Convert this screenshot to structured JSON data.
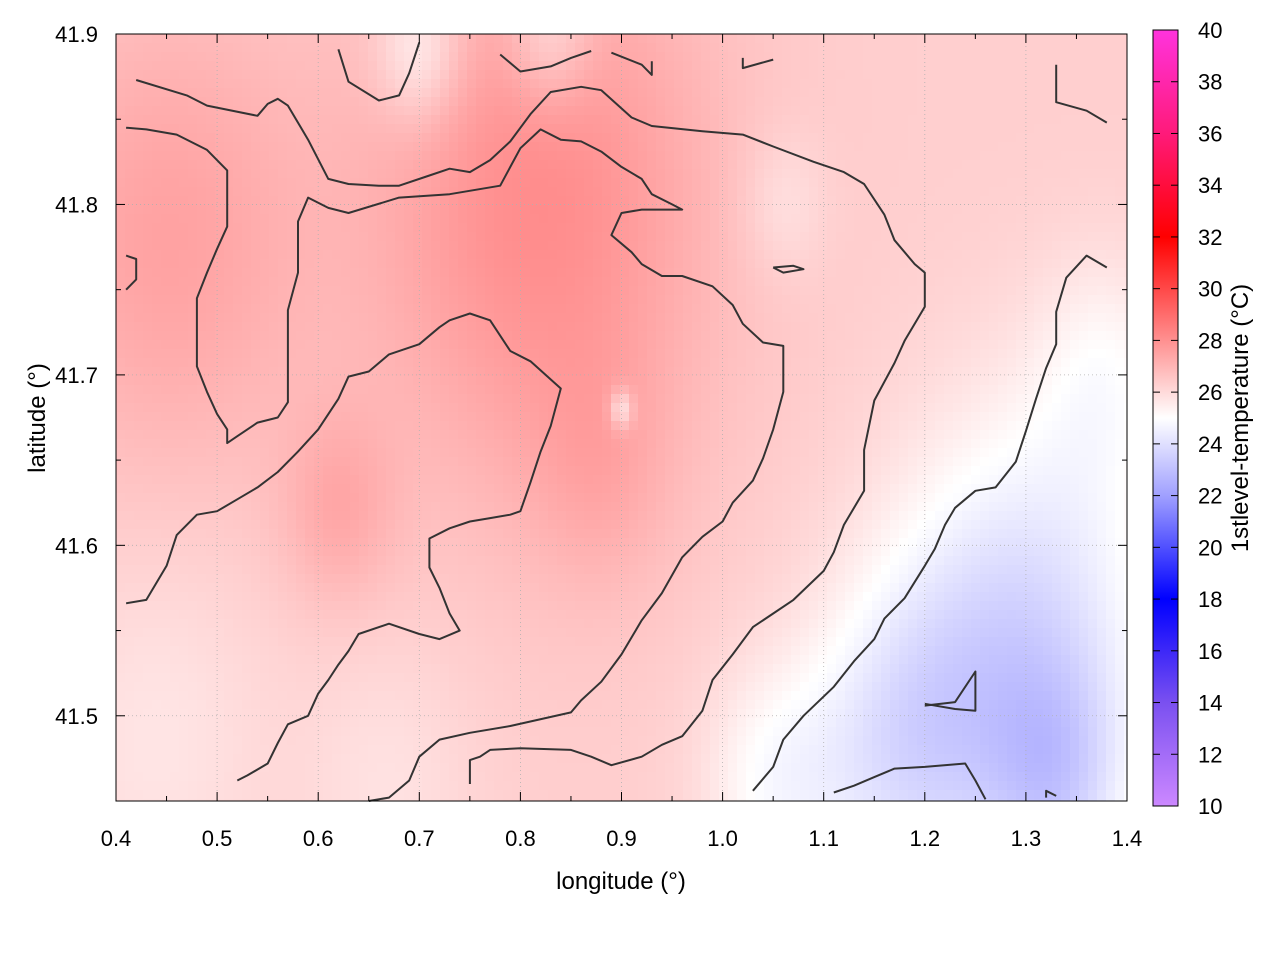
{
  "chart_data": {
    "type": "heatmap",
    "title": "",
    "xlabel": "longitude (°)",
    "ylabel": "latitude (°)",
    "colorbar_label": "1stlevel-temperature (°C)",
    "xlim": [
      0.4,
      1.4
    ],
    "ylim": [
      41.45,
      41.9
    ],
    "x_ticks": [
      0.4,
      0.5,
      0.6,
      0.7,
      0.8,
      0.9,
      1.0,
      1.1,
      1.2,
      1.3,
      1.4
    ],
    "x_tick_labels": [
      "0.4",
      "0.5",
      "0.6",
      "0.7",
      "0.8",
      "0.9",
      "1.0",
      "1.1",
      "1.2",
      "1.3",
      "1.4"
    ],
    "y_ticks": [
      41.5,
      41.6,
      41.7,
      41.8,
      41.9
    ],
    "y_tick_labels": [
      "41.5",
      "41.6",
      "41.7",
      "41.8",
      "41.9"
    ],
    "colorbar_range": [
      10,
      40
    ],
    "colorbar_ticks": [
      10,
      12,
      14,
      16,
      18,
      20,
      22,
      24,
      26,
      28,
      30,
      32,
      34,
      36,
      38,
      40
    ],
    "colorbar_tick_labels": [
      "10",
      "12",
      "14",
      "16",
      "18",
      "20",
      "22",
      "24",
      "26",
      "28",
      "30",
      "32",
      "34",
      "36",
      "38",
      "40"
    ],
    "colormap": [
      {
        "value": 10,
        "color": "#cc88ff"
      },
      {
        "value": 14,
        "color": "#7a50f0"
      },
      {
        "value": 18,
        "color": "#0000ff"
      },
      {
        "value": 22,
        "color": "#a0a0ff"
      },
      {
        "value": 25,
        "color": "#ffffff"
      },
      {
        "value": 28,
        "color": "#ff9090"
      },
      {
        "value": 32,
        "color": "#ff0000"
      },
      {
        "value": 36,
        "color": "#ff1a7a"
      },
      {
        "value": 40,
        "color": "#ff33dd"
      }
    ],
    "grid": true,
    "contour_color": "#333333",
    "field": {
      "base": 26.3,
      "centers": [
        {
          "lon": 0.82,
          "lat": 41.8,
          "amp": 1.8,
          "sigma": 0.12
        },
        {
          "lon": 0.45,
          "lat": 41.78,
          "amp": 1.2,
          "sigma": 0.1
        },
        {
          "lon": 0.62,
          "lat": 41.62,
          "amp": 0.9,
          "sigma": 0.04
        },
        {
          "lon": 0.88,
          "lat": 41.64,
          "amp": 0.6,
          "sigma": 0.05
        },
        {
          "lon": 1.3,
          "lat": 41.55,
          "amp": -2.4,
          "sigma": 0.09
        },
        {
          "lon": 1.18,
          "lat": 41.48,
          "amp": -2.0,
          "sigma": 0.07
        },
        {
          "lon": 1.05,
          "lat": 41.46,
          "amp": -1.2,
          "sigma": 0.05
        },
        {
          "lon": 1.33,
          "lat": 41.46,
          "amp": -1.8,
          "sigma": 0.05
        },
        {
          "lon": 0.7,
          "lat": 41.89,
          "amp": -1.4,
          "sigma": 0.03
        },
        {
          "lon": 0.83,
          "lat": 41.9,
          "amp": -1.2,
          "sigma": 0.03
        },
        {
          "lon": 1.38,
          "lat": 41.7,
          "amp": -1.0,
          "sigma": 0.05
        },
        {
          "lon": 0.44,
          "lat": 41.49,
          "amp": -0.6,
          "sigma": 0.08
        },
        {
          "lon": 0.67,
          "lat": 41.46,
          "amp": -0.5,
          "sigma": 0.06
        },
        {
          "lon": 1.06,
          "lat": 41.8,
          "amp": -0.6,
          "sigma": 0.03
        },
        {
          "lon": 0.9,
          "lat": 41.68,
          "amp": -1.6,
          "sigma": 0.008
        }
      ]
    },
    "contours": [
      [
        [
          0.42,
          41.873
        ],
        [
          0.47,
          41.864
        ],
        [
          0.49,
          41.858
        ],
        [
          0.54,
          41.852
        ],
        [
          0.55,
          41.859
        ],
        [
          0.56,
          41.862
        ],
        [
          0.57,
          41.858
        ],
        [
          0.59,
          41.838
        ],
        [
          0.61,
          41.815
        ],
        [
          0.63,
          41.812
        ],
        [
          0.66,
          41.811
        ],
        [
          0.68,
          41.811
        ],
        [
          0.71,
          41.817
        ],
        [
          0.73,
          41.821
        ],
        [
          0.75,
          41.819
        ],
        [
          0.77,
          41.826
        ],
        [
          0.79,
          41.837
        ],
        [
          0.81,
          41.853
        ],
        [
          0.83,
          41.866
        ],
        [
          0.86,
          41.869
        ],
        [
          0.88,
          41.867
        ],
        [
          0.91,
          41.851
        ],
        [
          0.93,
          41.846
        ],
        [
          0.98,
          41.843
        ],
        [
          1.02,
          41.841
        ],
        [
          1.05,
          41.834
        ],
        [
          1.09,
          41.825
        ],
        [
          1.12,
          41.819
        ],
        [
          1.14,
          41.812
        ],
        [
          1.16,
          41.794
        ],
        [
          1.17,
          41.779
        ],
        [
          1.19,
          41.765
        ],
        [
          1.2,
          41.76
        ],
        [
          1.2,
          41.74
        ],
        [
          1.18,
          41.72
        ],
        [
          1.17,
          41.707
        ],
        [
          1.15,
          41.685
        ],
        [
          1.14,
          41.656
        ],
        [
          1.14,
          41.632
        ],
        [
          1.12,
          41.612
        ],
        [
          1.11,
          41.596
        ],
        [
          1.1,
          41.585
        ],
        [
          1.07,
          41.568
        ],
        [
          1.05,
          41.56
        ],
        [
          1.03,
          41.552
        ],
        [
          1.01,
          41.536
        ],
        [
          0.99,
          41.521
        ],
        [
          0.98,
          41.503
        ],
        [
          0.96,
          41.488
        ],
        [
          0.94,
          41.483
        ],
        [
          0.92,
          41.476
        ],
        [
          0.89,
          41.471
        ],
        [
          0.87,
          41.476
        ],
        [
          0.85,
          41.48
        ],
        [
          0.8,
          41.481
        ],
        [
          0.77,
          41.48
        ],
        [
          0.76,
          41.476
        ],
        [
          0.75,
          41.474
        ],
        [
          0.75,
          41.46
        ]
      ],
      [
        [
          0.41,
          41.845
        ],
        [
          0.43,
          41.844
        ],
        [
          0.46,
          41.841
        ],
        [
          0.49,
          41.832
        ],
        [
          0.51,
          41.82
        ],
        [
          0.51,
          41.8
        ],
        [
          0.51,
          41.787
        ],
        [
          0.5,
          41.774
        ],
        [
          0.49,
          41.76
        ],
        [
          0.48,
          41.745
        ],
        [
          0.48,
          41.722
        ],
        [
          0.48,
          41.705
        ],
        [
          0.49,
          41.69
        ],
        [
          0.5,
          41.677
        ],
        [
          0.51,
          41.668
        ],
        [
          0.51,
          41.66
        ],
        [
          0.52,
          41.664
        ],
        [
          0.54,
          41.672
        ],
        [
          0.56,
          41.675
        ],
        [
          0.57,
          41.684
        ],
        [
          0.57,
          41.705
        ],
        [
          0.57,
          41.738
        ],
        [
          0.58,
          41.76
        ],
        [
          0.58,
          41.79
        ],
        [
          0.59,
          41.804
        ],
        [
          0.61,
          41.798
        ],
        [
          0.63,
          41.795
        ],
        [
          0.68,
          41.804
        ],
        [
          0.73,
          41.806
        ],
        [
          0.78,
          41.811
        ],
        [
          0.79,
          41.822
        ],
        [
          0.8,
          41.833
        ],
        [
          0.82,
          41.844
        ],
        [
          0.84,
          41.838
        ],
        [
          0.86,
          41.837
        ],
        [
          0.88,
          41.831
        ],
        [
          0.9,
          41.822
        ],
        [
          0.92,
          41.815
        ],
        [
          0.93,
          41.806
        ],
        [
          0.95,
          41.8
        ],
        [
          0.96,
          41.797
        ],
        [
          0.92,
          41.797
        ],
        [
          0.9,
          41.795
        ],
        [
          0.89,
          41.782
        ],
        [
          0.91,
          41.772
        ],
        [
          0.92,
          41.765
        ],
        [
          0.94,
          41.758
        ],
        [
          0.96,
          41.758
        ],
        [
          0.99,
          41.752
        ],
        [
          1.01,
          41.741
        ],
        [
          1.02,
          41.73
        ],
        [
          1.04,
          41.719
        ],
        [
          1.06,
          41.717
        ],
        [
          1.06,
          41.69
        ],
        [
          1.05,
          41.668
        ],
        [
          1.04,
          41.651
        ],
        [
          1.03,
          41.638
        ],
        [
          1.01,
          41.625
        ],
        [
          1.0,
          41.614
        ],
        [
          0.98,
          41.605
        ],
        [
          0.96,
          41.593
        ],
        [
          0.94,
          41.572
        ],
        [
          0.92,
          41.556
        ],
        [
          0.9,
          41.536
        ],
        [
          0.88,
          41.52
        ],
        [
          0.86,
          41.509
        ],
        [
          0.85,
          41.502
        ],
        [
          0.79,
          41.494
        ],
        [
          0.75,
          41.49
        ],
        [
          0.72,
          41.486
        ],
        [
          0.7,
          41.476
        ],
        [
          0.69,
          41.462
        ],
        [
          0.67,
          41.452
        ],
        [
          0.65,
          41.45
        ]
      ],
      [
        [
          0.41,
          41.566
        ],
        [
          0.43,
          41.568
        ],
        [
          0.45,
          41.588
        ],
        [
          0.46,
          41.606
        ],
        [
          0.48,
          41.618
        ],
        [
          0.5,
          41.62
        ],
        [
          0.52,
          41.627
        ],
        [
          0.54,
          41.634
        ],
        [
          0.56,
          41.643
        ],
        [
          0.58,
          41.655
        ],
        [
          0.6,
          41.668
        ],
        [
          0.62,
          41.686
        ],
        [
          0.63,
          41.699
        ],
        [
          0.65,
          41.702
        ],
        [
          0.67,
          41.712
        ],
        [
          0.7,
          41.718
        ],
        [
          0.72,
          41.728
        ],
        [
          0.73,
          41.732
        ],
        [
          0.75,
          41.736
        ],
        [
          0.77,
          41.732
        ],
        [
          0.79,
          41.714
        ],
        [
          0.81,
          41.708
        ],
        [
          0.84,
          41.692
        ],
        [
          0.83,
          41.67
        ],
        [
          0.82,
          41.655
        ],
        [
          0.81,
          41.637
        ],
        [
          0.8,
          41.62
        ],
        [
          0.79,
          41.618
        ],
        [
          0.77,
          41.616
        ],
        [
          0.75,
          41.614
        ],
        [
          0.73,
          41.61
        ],
        [
          0.71,
          41.604
        ],
        [
          0.71,
          41.587
        ],
        [
          0.72,
          41.575
        ],
        [
          0.73,
          41.56
        ],
        [
          0.74,
          41.55
        ],
        [
          0.72,
          41.545
        ],
        [
          0.7,
          41.548
        ],
        [
          0.67,
          41.554
        ],
        [
          0.64,
          41.548
        ],
        [
          0.63,
          41.538
        ],
        [
          0.62,
          41.53
        ],
        [
          0.61,
          41.521
        ],
        [
          0.6,
          41.513
        ],
        [
          0.59,
          41.5
        ],
        [
          0.57,
          41.495
        ],
        [
          0.56,
          41.484
        ],
        [
          0.55,
          41.472
        ],
        [
          0.53,
          41.465
        ],
        [
          0.52,
          41.462
        ]
      ],
      [
        [
          1.33,
          41.882
        ],
        [
          1.33,
          41.86
        ],
        [
          1.36,
          41.855
        ],
        [
          1.38,
          41.848
        ]
      ],
      [
        [
          1.38,
          41.763
        ],
        [
          1.36,
          41.77
        ],
        [
          1.34,
          41.757
        ],
        [
          1.33,
          41.737
        ],
        [
          1.33,
          41.718
        ],
        [
          1.32,
          41.704
        ],
        [
          1.31,
          41.686
        ],
        [
          1.3,
          41.667
        ],
        [
          1.29,
          41.649
        ],
        [
          1.27,
          41.634
        ],
        [
          1.25,
          41.632
        ],
        [
          1.23,
          41.622
        ],
        [
          1.22,
          41.612
        ],
        [
          1.21,
          41.598
        ],
        [
          1.2,
          41.588
        ],
        [
          1.18,
          41.569
        ],
        [
          1.16,
          41.557
        ],
        [
          1.15,
          41.545
        ],
        [
          1.13,
          41.532
        ],
        [
          1.11,
          41.517
        ],
        [
          1.08,
          41.5
        ],
        [
          1.06,
          41.486
        ],
        [
          1.05,
          41.47
        ],
        [
          1.03,
          41.456
        ]
      ],
      [
        [
          1.03,
          41.456
        ]
      ],
      [
        [
          1.11,
          41.455
        ],
        [
          1.13,
          41.459
        ],
        [
          1.15,
          41.464
        ],
        [
          1.17,
          41.469
        ],
        [
          1.2,
          41.47
        ],
        [
          1.24,
          41.472
        ],
        [
          1.25,
          41.462
        ],
        [
          1.26,
          41.451
        ]
      ],
      [
        [
          1.2,
          41.506
        ],
        [
          1.23,
          41.508
        ],
        [
          1.25,
          41.526
        ],
        [
          1.25,
          41.526
        ],
        [
          1.25,
          41.517
        ],
        [
          1.25,
          41.503
        ],
        [
          1.23,
          41.504
        ],
        [
          1.2,
          41.507
        ]
      ],
      [
        [
          1.05,
          41.763
        ],
        [
          1.07,
          41.764
        ],
        [
          1.08,
          41.762
        ],
        [
          1.06,
          41.76
        ],
        [
          1.05,
          41.763
        ]
      ],
      [
        [
          0.41,
          41.77
        ],
        [
          0.42,
          41.768
        ],
        [
          0.42,
          41.756
        ],
        [
          0.41,
          41.75
        ]
      ],
      [
        [
          0.62,
          41.891
        ],
        [
          0.63,
          41.872
        ],
        [
          0.66,
          41.861
        ],
        [
          0.68,
          41.864
        ],
        [
          0.69,
          41.877
        ],
        [
          0.7,
          41.895
        ]
      ],
      [
        [
          0.78,
          41.888
        ],
        [
          0.8,
          41.878
        ],
        [
          0.83,
          41.881
        ],
        [
          0.85,
          41.886
        ],
        [
          0.87,
          41.89
        ]
      ],
      [
        [
          0.89,
          41.889
        ],
        [
          0.92,
          41.882
        ],
        [
          0.93,
          41.876
        ],
        [
          0.93,
          41.884
        ]
      ],
      [
        [
          1.02,
          41.886
        ],
        [
          1.02,
          41.88
        ],
        [
          1.05,
          41.885
        ]
      ],
      [
        [
          1.32,
          41.452
        ],
        [
          1.32,
          41.456
        ],
        [
          1.33,
          41.453
        ]
      ]
    ]
  }
}
